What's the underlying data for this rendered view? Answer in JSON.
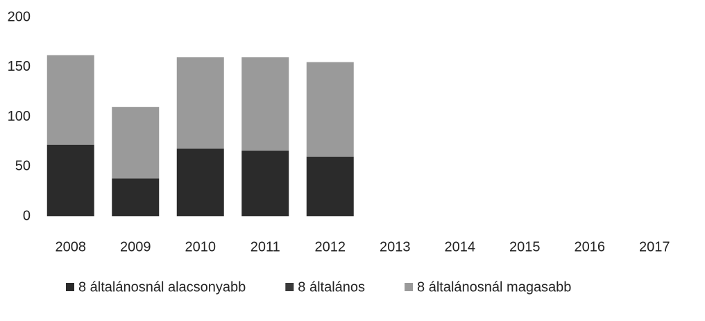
{
  "chart_data": {
    "type": "stacked_bar",
    "categories": [
      "2008",
      "2009",
      "2010",
      "2011",
      "2012",
      "2013",
      "2014",
      "2015",
      "2016",
      "2017"
    ],
    "series": [
      {
        "name": "8 általánosnál alacsonyabb",
        "color": "#2b2b2b",
        "values": [
          72,
          38,
          68,
          66,
          60,
          null,
          null,
          null,
          null,
          null
        ]
      },
      {
        "name": "8 általános",
        "color": "#3a3a3a",
        "values": [
          0,
          0,
          0,
          0,
          0,
          null,
          null,
          null,
          null,
          null
        ]
      },
      {
        "name": "8 általánosnál magasabb",
        "color": "#9a9a9a",
        "values": [
          90,
          72,
          92,
          94,
          95,
          null,
          null,
          null,
          null,
          null
        ]
      }
    ],
    "ylim": [
      0,
      200
    ],
    "yticks": [
      0,
      50,
      100,
      150,
      200
    ],
    "grid": false,
    "legend": "bottom"
  }
}
